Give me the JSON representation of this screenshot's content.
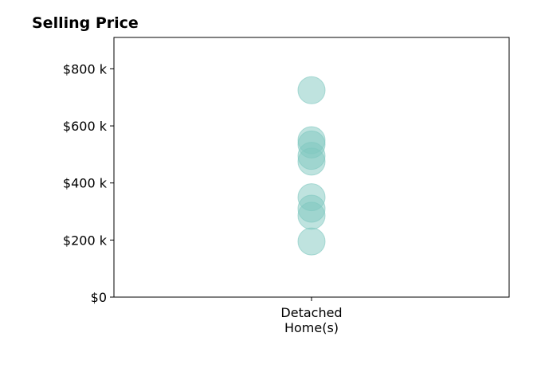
{
  "chart_data": {
    "type": "scatter",
    "title": "Selling Price",
    "xlabel": "",
    "ylabel": "",
    "categories": [
      "Detached\nHome(s)"
    ],
    "series": [
      {
        "category": "Detached\nHome(s)",
        "values": [
          725000,
          550000,
          535000,
          495000,
          475000,
          350000,
          310000,
          285000,
          195000
        ]
      }
    ],
    "ylim": [
      0,
      910000
    ],
    "y_ticks": [
      {
        "value": 0,
        "label": "$0"
      },
      {
        "value": 200000,
        "label": "$200 k"
      },
      {
        "value": 400000,
        "label": "$400 k"
      },
      {
        "value": 600000,
        "label": "$600 k"
      },
      {
        "value": 800000,
        "label": "$800 k"
      }
    ],
    "grid": false,
    "marker_color": "#7fc8c0",
    "marker_alpha": 0.5
  }
}
